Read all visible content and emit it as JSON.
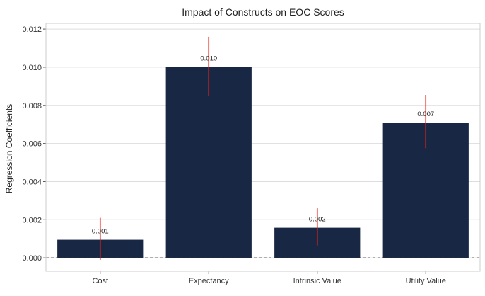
{
  "chart_data": {
    "type": "bar",
    "title": "Impact of Constructs on EOC Scores",
    "xlabel": "",
    "ylabel": "Regression Coefficients",
    "categories": [
      "Cost",
      "Expectancy",
      "Intrinsic Value",
      "Utility Value"
    ],
    "values": [
      0.00095,
      0.01001,
      0.00158,
      0.0071
    ],
    "error_low": [
      -0.0001,
      0.0085,
      0.00065,
      0.00575
    ],
    "error_high": [
      0.0021,
      0.0116,
      0.0026,
      0.00855
    ],
    "data_labels": [
      "0.001",
      "0.010",
      "0.002",
      "0.007"
    ],
    "y_ticks": [
      0.0,
      0.002,
      0.004,
      0.006,
      0.008,
      0.01,
      0.012
    ],
    "y_tick_labels": [
      "0.000",
      "0.002",
      "0.004",
      "0.006",
      "0.008",
      "0.010",
      "0.012"
    ],
    "ylim": [
      -0.0007,
      0.0123
    ],
    "grid": true,
    "reference_line": 0,
    "colors": {
      "bar": "#172744",
      "error_bar": "#e8201a",
      "grid": "#dddddd",
      "frame": "#cccccc",
      "reference_line": "#333333"
    }
  }
}
